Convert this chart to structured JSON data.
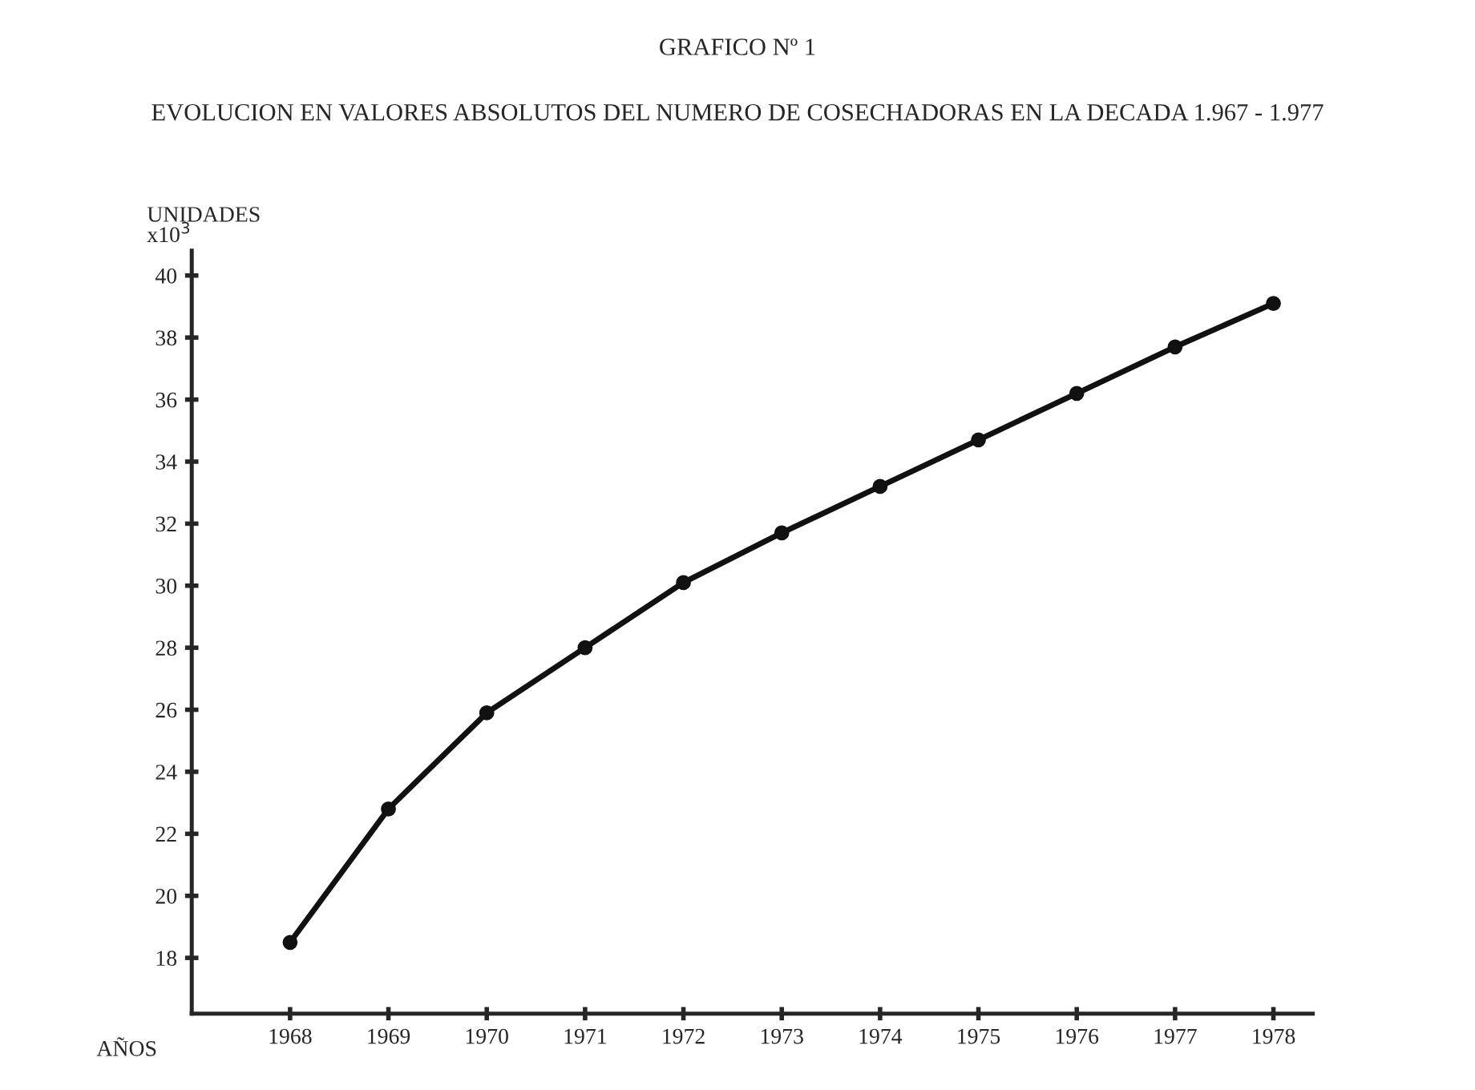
{
  "chart_data": {
    "type": "line",
    "title": "GRAFICO Nº 1",
    "subtitle": "EVOLUCION EN VALORES ABSOLUTOS DEL NUMERO DE COSECHADORAS EN LA DECADA 1.967 - 1.977",
    "xlabel": "AÑOS",
    "ylabel": "UNIDADES\nx10$^{3}$",
    "x": [
      1968,
      1969,
      1970,
      1971,
      1972,
      1973,
      1974,
      1975,
      1976,
      1977,
      1978
    ],
    "series": [
      {
        "color": "#111111",
        "values": [
          18.5,
          22.8,
          25.9,
          28.0,
          30.1,
          31.7,
          33.2,
          34.7,
          36.2,
          37.7,
          39.1
        ]
      }
    ],
    "xlim": [
      1967,
      1978.4
    ],
    "ylim": [
      16.2,
      40.8
    ],
    "xticks": [
      1968,
      1969,
      1970,
      1971,
      1972,
      1973,
      1974,
      1975,
      1976,
      1977,
      1978
    ],
    "yticks": [
      18,
      20,
      22,
      24,
      26,
      28,
      30,
      32,
      34,
      36,
      38,
      40
    ],
    "marker": "circle",
    "line_style": "solid",
    "grid": false
  }
}
